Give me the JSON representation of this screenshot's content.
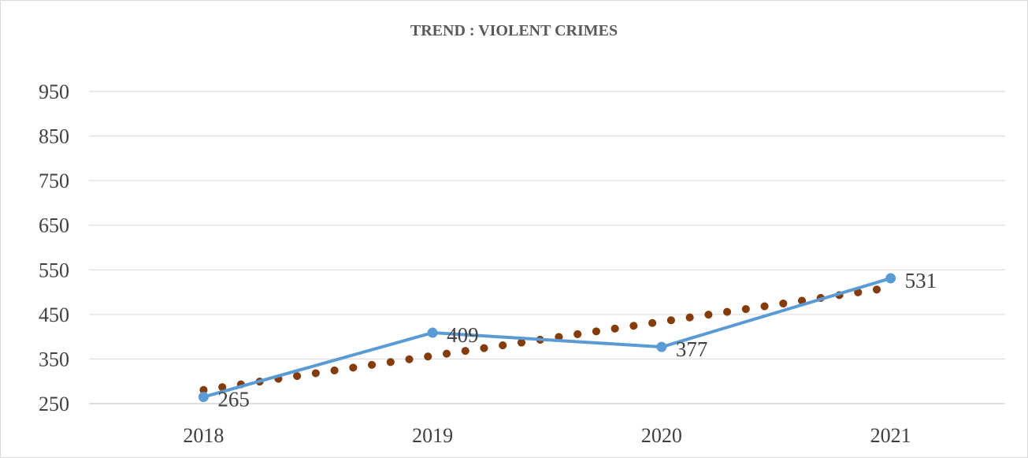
{
  "chart_data": {
    "type": "line",
    "title": "TREND : VIOLENT CRIMES",
    "categories": [
      "2018",
      "2019",
      "2020",
      "2021"
    ],
    "series": [
      {
        "name": "",
        "values": [
          265,
          409,
          377,
          531
        ],
        "color": "#5b9bd5",
        "data_labels": [
          "265",
          "409",
          "377",
          "531"
        ]
      }
    ],
    "trendline": {
      "type": "linear",
      "style": "dotted",
      "color": "#843c0c"
    },
    "ylim": [
      250,
      950
    ],
    "yticks": [
      "250",
      "350",
      "450",
      "550",
      "650",
      "750",
      "850",
      "950"
    ],
    "grid": true,
    "legend": "none"
  }
}
